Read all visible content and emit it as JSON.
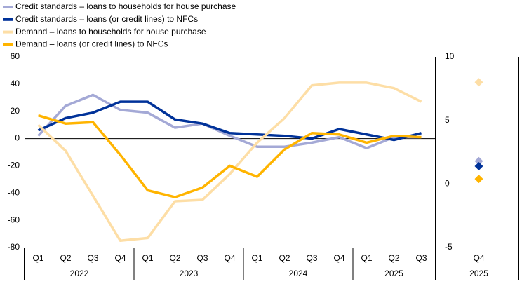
{
  "chart_data": [
    {
      "type": "line",
      "categories": [
        "Q1",
        "Q2",
        "Q3",
        "Q4",
        "Q1",
        "Q2",
        "Q3",
        "Q4",
        "Q1",
        "Q2",
        "Q3",
        "Q4",
        "Q1",
        "Q2",
        "Q3"
      ],
      "groups": [
        {
          "label": "2022",
          "count": 4
        },
        {
          "label": "2023",
          "count": 4
        },
        {
          "label": "2024",
          "count": 4
        },
        {
          "label": "2025",
          "count": 3
        }
      ],
      "ylim": [
        -80,
        60
      ],
      "yticks": [
        -80,
        -60,
        -40,
        -20,
        0,
        20,
        40,
        60
      ],
      "series": [
        {
          "name": "Credit standards – loans to households for house purchase",
          "color": "#a4a9d6",
          "values": [
            2,
            24,
            32,
            21,
            19,
            8,
            11,
            2,
            -6,
            -6,
            -3,
            1,
            -7,
            1,
            1
          ]
        },
        {
          "name": "Credit standards – loans (or credit lines) to NFCs",
          "color": "#003299",
          "values": [
            6,
            15,
            19,
            27,
            27,
            14,
            11,
            4,
            3,
            2,
            0,
            7,
            3,
            -1,
            4
          ]
        },
        {
          "name": "Demand – loans to households for house purchase",
          "color": "#fddea6",
          "values": [
            10,
            -9,
            -42,
            -75,
            -73,
            -46,
            -45,
            -26,
            -3,
            15,
            39,
            41,
            41,
            37,
            27
          ]
        },
        {
          "name": "Demand – loans (or credit lines) to NFCs",
          "color": "#ffb400",
          "values": [
            17,
            11,
            12,
            -12,
            -38,
            -43,
            -36,
            -20,
            -28,
            -8,
            4,
            3,
            -3,
            2,
            1
          ]
        }
      ]
    },
    {
      "type": "scatter",
      "categories": [
        "Q4"
      ],
      "groups": [
        {
          "label": "2025",
          "count": 1
        }
      ],
      "ylim": [
        -5,
        10
      ],
      "yticks": [
        -5,
        0,
        5,
        10
      ],
      "series": [
        {
          "color": "#a4a9d6",
          "values": [
            1.8
          ]
        },
        {
          "color": "#003299",
          "values": [
            1.4
          ]
        },
        {
          "color": "#fddea6",
          "values": [
            8
          ]
        },
        {
          "color": "#ffb400",
          "values": [
            0.4
          ]
        }
      ]
    }
  ]
}
